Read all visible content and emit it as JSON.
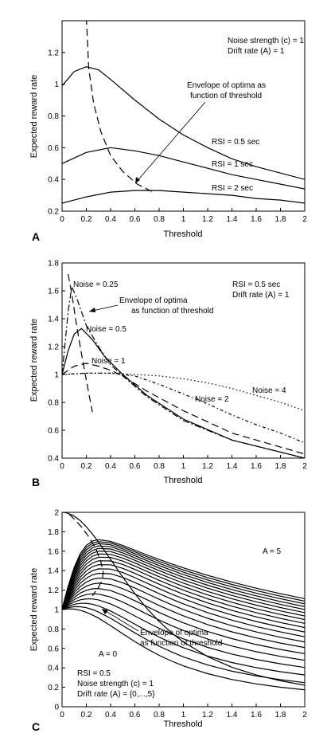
{
  "chart_data": [
    {
      "panel": "A",
      "type": "line",
      "xlabel": "Threshold",
      "ylabel": "Expected reward rate",
      "xlim": [
        0,
        2
      ],
      "ylim": [
        0.2,
        1.4
      ],
      "xticks": [
        0,
        0.2,
        0.4,
        0.6,
        0.8,
        1,
        1.2,
        1.4,
        1.6,
        1.8,
        2
      ],
      "xtick_labels": [
        "0",
        "0.2",
        "0.4",
        "0.6",
        "0.8",
        "1",
        "1.2",
        "1.4",
        "1.6",
        "1.8",
        "2"
      ],
      "yticks": [
        0.2,
        0.4,
        0.6,
        0.8,
        1,
        1.2
      ],
      "ytick_labels": [
        "0.2",
        "0.4",
        "0.6",
        "0.8",
        "1",
        "1.2"
      ],
      "grid": false,
      "annotations": [
        "Noise strength (c) = 1",
        "Drift rate (A) = 1",
        "Envelope of optima as",
        "function of threshold",
        "RSI = 0.5 sec",
        "RSI = 1 sec",
        "RSI = 2 sec"
      ],
      "series": [
        {
          "style": "solid",
          "x": [
            0,
            0.1,
            0.2,
            0.3,
            0.4,
            0.6,
            0.8,
            1.0,
            1.2,
            1.4,
            1.6,
            1.8,
            2.0
          ],
          "y": [
            0.99,
            1.08,
            1.11,
            1.09,
            1.03,
            0.9,
            0.78,
            0.68,
            0.6,
            0.53,
            0.48,
            0.44,
            0.4
          ]
        },
        {
          "style": "solid",
          "x": [
            0,
            0.2,
            0.4,
            0.6,
            0.8,
            1.0,
            1.2,
            1.4,
            1.6,
            1.8,
            2.0
          ],
          "y": [
            0.5,
            0.57,
            0.6,
            0.58,
            0.55,
            0.51,
            0.47,
            0.43,
            0.4,
            0.37,
            0.34
          ]
        },
        {
          "style": "solid",
          "x": [
            0,
            0.2,
            0.4,
            0.6,
            0.8,
            1.0,
            1.2,
            1.4,
            1.6,
            1.8,
            2.0
          ],
          "y": [
            0.25,
            0.29,
            0.32,
            0.33,
            0.33,
            0.32,
            0.31,
            0.3,
            0.28,
            0.27,
            0.25
          ]
        },
        {
          "style": "dashed",
          "x": [
            0.2,
            0.22,
            0.26,
            0.32,
            0.4,
            0.5,
            0.62,
            0.75
          ],
          "y": [
            1.42,
            1.1,
            0.88,
            0.7,
            0.55,
            0.45,
            0.37,
            0.32
          ]
        }
      ]
    },
    {
      "panel": "B",
      "type": "line",
      "xlabel": "Threshold",
      "ylabel": "Expected reward rate",
      "xlim": [
        0,
        2
      ],
      "ylim": [
        0.4,
        1.8
      ],
      "xticks": [
        0,
        0.2,
        0.4,
        0.6,
        0.8,
        1,
        1.2,
        1.4,
        1.6,
        1.8,
        2
      ],
      "xtick_labels": [
        "0",
        "0.2",
        "0.4",
        "0.6",
        "0.8",
        "1",
        "1.2",
        "1.4",
        "1.6",
        "1.8",
        "2"
      ],
      "yticks": [
        0.4,
        0.6,
        0.8,
        1,
        1.2,
        1.4,
        1.6,
        1.8
      ],
      "ytick_labels": [
        "0.4",
        "0.6",
        "0.8",
        "1",
        "1.2",
        "1.4",
        "1.6",
        "1.8"
      ],
      "grid": false,
      "annotations": [
        "Noise = 0.25",
        "Envelope of optima",
        "as function of threshold",
        "Noise = 0.5",
        "Noise = 1",
        "Noise = 2",
        "Noise = 4",
        "RSI = 0.5 sec",
        "Drift rate (A) = 1"
      ],
      "series": [
        {
          "style": "dashdot",
          "x": [
            0,
            0.05,
            0.08,
            0.12,
            0.2,
            0.3,
            0.4,
            0.5,
            0.7,
            1.0,
            1.4,
            2.0
          ],
          "y": [
            1.0,
            1.45,
            1.63,
            1.55,
            1.35,
            1.2,
            1.07,
            0.99,
            0.84,
            0.67,
            0.53,
            0.4
          ]
        },
        {
          "style": "solid",
          "x": [
            0,
            0.05,
            0.1,
            0.16,
            0.25,
            0.35,
            0.5,
            0.7,
            1.0,
            1.4,
            2.0
          ],
          "y": [
            1.0,
            1.17,
            1.29,
            1.33,
            1.25,
            1.13,
            1.0,
            0.85,
            0.68,
            0.53,
            0.4
          ]
        },
        {
          "style": "dashed",
          "x": [
            0,
            0.1,
            0.2,
            0.3,
            0.4,
            0.5,
            0.7,
            1.0,
            1.4,
            2.0
          ],
          "y": [
            1.0,
            1.06,
            1.08,
            1.06,
            1.03,
            0.99,
            0.88,
            0.74,
            0.58,
            0.43
          ]
        },
        {
          "style": "dotdash",
          "x": [
            0,
            0.2,
            0.4,
            0.6,
            0.8,
            1.0,
            1.2,
            1.4,
            1.6,
            1.8,
            2.0
          ],
          "y": [
            1.0,
            1.01,
            1.01,
            0.99,
            0.93,
            0.86,
            0.79,
            0.71,
            0.64,
            0.58,
            0.51
          ]
        },
        {
          "style": "dotted",
          "x": [
            0,
            0.2,
            0.4,
            0.6,
            0.8,
            1.0,
            1.2,
            1.4,
            1.6,
            1.8,
            2.0
          ],
          "y": [
            1.0,
            1.01,
            1.01,
            1.0,
            0.99,
            0.97,
            0.94,
            0.9,
            0.85,
            0.8,
            0.74
          ]
        },
        {
          "style": "dashed",
          "x": [
            0.05,
            0.08,
            0.12,
            0.16,
            0.2,
            0.23,
            0.25
          ],
          "y": [
            1.72,
            1.58,
            1.35,
            1.15,
            0.96,
            0.82,
            0.73
          ]
        }
      ]
    },
    {
      "panel": "C",
      "type": "line",
      "xlabel": "Threshold",
      "ylabel": "Expected reward rate",
      "xlim": [
        0,
        2
      ],
      "ylim": [
        0,
        2
      ],
      "xticks": [
        0,
        0.2,
        0.4,
        0.6,
        0.8,
        1,
        1.2,
        1.4,
        1.6,
        1.8,
        2
      ],
      "xtick_labels": [
        "0",
        "0.2",
        "0.4",
        "0.6",
        "0.8",
        "1",
        "1.2",
        "1.4",
        "1.6",
        "1.8",
        "2"
      ],
      "yticks": [
        0,
        0.2,
        0.4,
        0.6,
        0.8,
        1,
        1.2,
        1.4,
        1.6,
        1.8,
        2
      ],
      "ytick_labels": [
        "0",
        "0.2",
        "0.4",
        "0.6",
        "0.8",
        "1",
        "1.2",
        "1.4",
        "1.6",
        "1.8",
        "2"
      ],
      "grid": false,
      "annotations": [
        "A = 5",
        "Envelope of optima",
        "as function of threshold",
        "A = 0",
        "RSI = 0.5",
        "Noise strength (c) = 1",
        "Drift rate (A) = {0,...,5}"
      ],
      "family": {
        "drift_values": [
          0,
          0.25,
          0.5,
          0.75,
          1,
          1.25,
          1.5,
          1.75,
          2,
          2.25,
          2.5,
          2.75,
          3,
          3.25,
          3.5,
          3.75,
          4,
          4.25,
          4.5,
          4.75,
          5
        ],
        "x": [
          0,
          0.02,
          0.05,
          0.1,
          0.15,
          0.2,
          0.25,
          0.3,
          0.4,
          0.5,
          0.6,
          0.7,
          0.8,
          0.9,
          1.0,
          1.2,
          1.4,
          1.6,
          1.8,
          2.0
        ],
        "rsi": 0.5,
        "noise": 1
      },
      "series": [
        {
          "style": "dashed",
          "x": [
            0.06,
            0.1,
            0.16,
            0.22,
            0.28,
            0.32,
            0.34,
            0.33,
            0.3,
            0.25
          ],
          "y": [
            1.98,
            1.93,
            1.85,
            1.75,
            1.62,
            1.49,
            1.38,
            1.3,
            1.23,
            1.14
          ]
        }
      ]
    }
  ],
  "panels": [
    {
      "letter": "A"
    },
    {
      "letter": "B"
    },
    {
      "letter": "C"
    }
  ]
}
